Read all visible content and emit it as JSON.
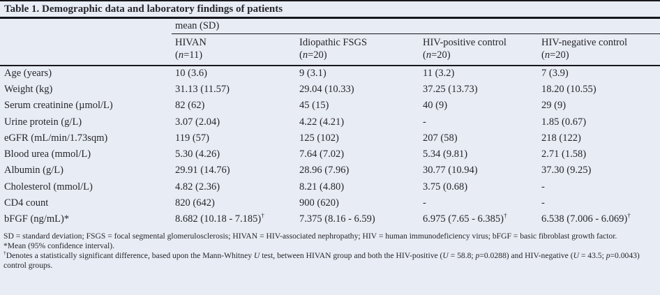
{
  "title": "Table 1. Demographic data and laboratory findings of patients",
  "table": {
    "span_header": "mean (SD)",
    "columns": [
      {
        "label": "HIVAN",
        "n": [
          {
            "t": "("
          },
          {
            "t": "n",
            "i": true
          },
          {
            "t": "=11)"
          }
        ]
      },
      {
        "label": "Idiopathic FSGS",
        "n": [
          {
            "t": "("
          },
          {
            "t": "n",
            "i": true
          },
          {
            "t": "=20)"
          }
        ]
      },
      {
        "label": "HIV-positive control",
        "n": [
          {
            "t": "("
          },
          {
            "t": "n",
            "i": true
          },
          {
            "t": "=20)"
          }
        ]
      },
      {
        "label": "HIV-negative control",
        "n": [
          {
            "t": "("
          },
          {
            "t": "n",
            "i": true
          },
          {
            "t": "=20)"
          }
        ]
      }
    ],
    "rows": [
      {
        "label": "Age (years)",
        "cells": [
          "10 (3.6)",
          "9 (3.1)",
          "11 (3.2)",
          "7 (3.9)"
        ]
      },
      {
        "label": "Weight (kg)",
        "cells": [
          "31.13 (11.57)",
          "29.04 (10.33)",
          "37.25 (13.73)",
          "18.20 (10.55)"
        ]
      },
      {
        "label": "Serum creatinine (µmol/L)",
        "cells": [
          "82 (62)",
          "45 (15)",
          "40 (9)",
          "29 (9)"
        ]
      },
      {
        "label": "Urine protein (g/L)",
        "cells": [
          "3.07 (2.04)",
          "4.22 (4.21)",
          "-",
          "1.85 (0.67)"
        ]
      },
      {
        "label": "eGFR (mL/min/1.73sqm)",
        "cells": [
          "119 (57)",
          "125 (102)",
          "207 (58)",
          "218 (122)"
        ]
      },
      {
        "label": "Blood urea (mmol/L)",
        "cells": [
          "5.30 (4.26)",
          "7.64 (7.02)",
          "5.34 (9.81)",
          "2.71 (1.58)"
        ]
      },
      {
        "label": "Albumin (g/L)",
        "cells": [
          "29.91 (14.76)",
          "28.96 (7.96)",
          "30.77 (10.94)",
          "37.30 (9.25)"
        ]
      },
      {
        "label": "Cholesterol (mmol/L)",
        "cells": [
          "4.82 (2.36)",
          "8.21 (4.80)",
          "3.75 (0.68)",
          "-"
        ]
      },
      {
        "label": "CD4 count",
        "cells": [
          "820 (642)",
          "900 (620)",
          "-",
          "-"
        ]
      },
      {
        "label": "bFGF (ng/mL)*",
        "cells_rich": [
          [
            {
              "t": "8.682 (10.18 - 7.185)"
            },
            {
              "t": "†",
              "sup": true
            }
          ],
          [
            {
              "t": "7.375 (8.16 - 6.59)"
            }
          ],
          [
            {
              "t": "6.975 (7.65 - 6.385)"
            },
            {
              "t": "†",
              "sup": true
            }
          ],
          [
            {
              "t": "6.538 (7.006 - 6.069)"
            },
            {
              "t": "†",
              "sup": true
            }
          ]
        ]
      }
    ]
  },
  "footnotes": {
    "abbreviations": "SD = standard deviation; FSGS = focal segmental glomerulosclerosis; HIVAN = HIV-associated nephropathy; HIV = human immunodeficiency virus; bFGF = basic fibroblast growth factor.",
    "mean_ci": "*Mean (95% confidence interval).",
    "significance": [
      {
        "t": "†",
        "sup": true
      },
      {
        "t": "Denotes a statistically significant difference, based upon the Mann-Whitney "
      },
      {
        "t": "U",
        "i": true
      },
      {
        "t": " test, between HIVAN group and both the HIV-positive ("
      },
      {
        "t": "U",
        "i": true
      },
      {
        "t": " = 58.8; "
      },
      {
        "t": "p",
        "i": true
      },
      {
        "t": "=0.0288) and HIV-negative ("
      },
      {
        "t": "U",
        "i": true
      },
      {
        "t": " = 43.5; "
      },
      {
        "t": "p",
        "i": true
      },
      {
        "t": "=0.0043) control groups."
      }
    ]
  }
}
